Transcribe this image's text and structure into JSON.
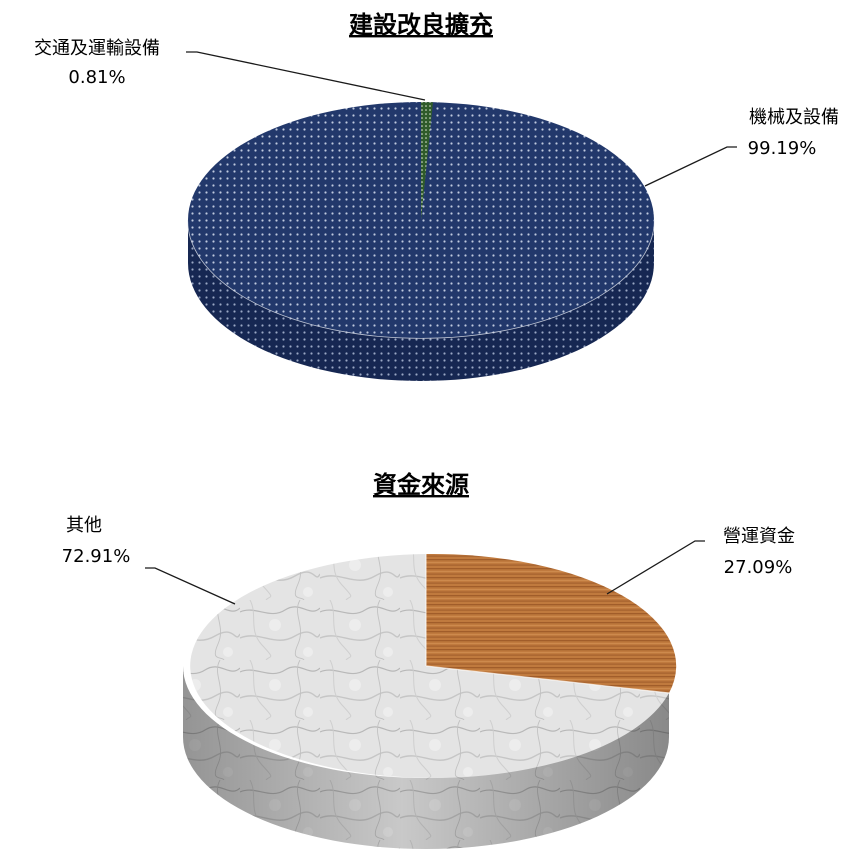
{
  "chart_data": [
    {
      "type": "pie",
      "title": "建設改良擴充",
      "slices": [
        {
          "label": "機械及設備",
          "percent_text": "99.19%",
          "value": 99.19,
          "color": "#1f3566"
        },
        {
          "label": "交通及運輸設備",
          "percent_text": "0.81%",
          "value": 0.81,
          "color": "#3f6b36"
        }
      ],
      "style": "3d-pie-dotted"
    },
    {
      "type": "pie",
      "title": "資金來源",
      "slices": [
        {
          "label": "營運資金",
          "percent_text": "27.09%",
          "value": 27.09,
          "color": "#b9733a"
        },
        {
          "label": "其他",
          "percent_text": "72.91%",
          "value": 72.91,
          "color": "#dcdcdc"
        }
      ],
      "style": "3d-pie-textured"
    }
  ]
}
